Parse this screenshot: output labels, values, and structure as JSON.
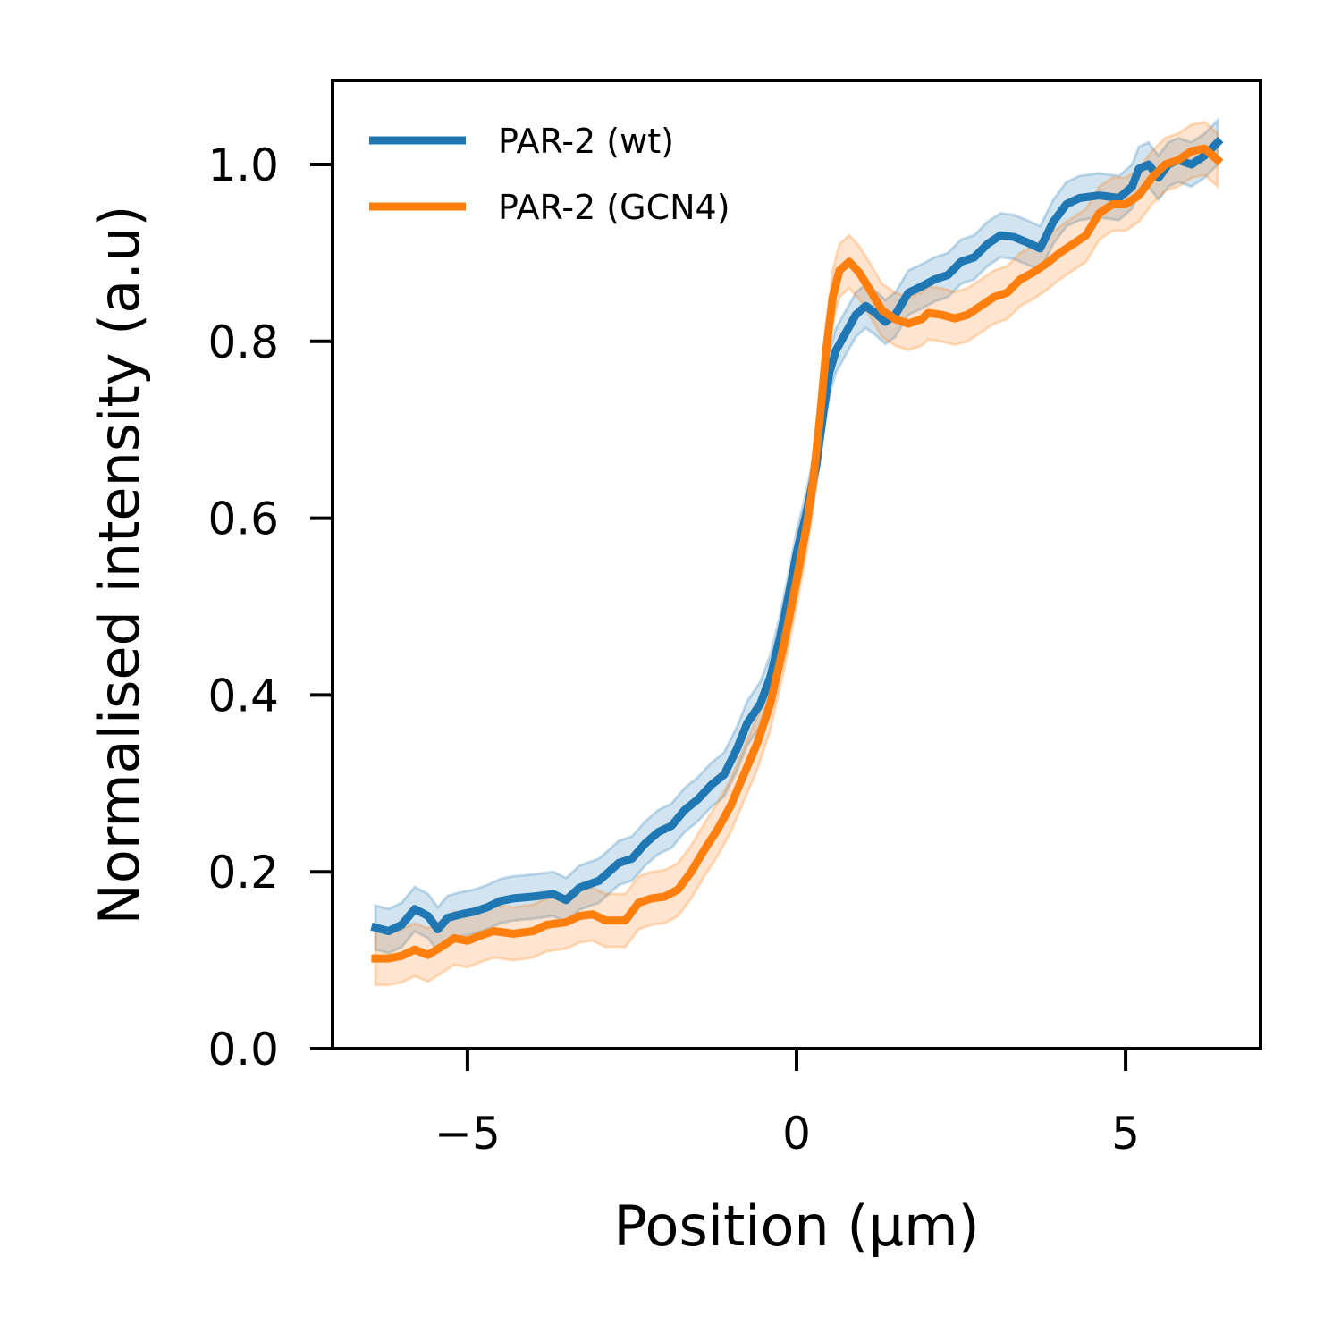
{
  "chart_data": {
    "type": "line",
    "xlabel": "Position (μm)",
    "ylabel": "Normalised intensity (a.u)",
    "xlim": [
      -7.05,
      7.05
    ],
    "ylim": [
      0.0,
      1.095
    ],
    "xticks": [
      -5,
      0,
      5
    ],
    "xtick_labels": [
      "−5",
      "0",
      "5"
    ],
    "yticks": [
      0.0,
      0.2,
      0.4,
      0.6,
      0.8,
      1.0
    ],
    "ytick_labels": [
      "0.0",
      "0.2",
      "0.4",
      "0.6",
      "0.8",
      "1.0"
    ],
    "grid": false,
    "legend_position": "top-left",
    "series": [
      {
        "name": "PAR-2 (wt)",
        "color": "#1f77b4",
        "band": "mean ± error (shaded)",
        "band_halfwidth": 0.025,
        "points": [
          [
            -6.4,
            0.137
          ],
          [
            -6.2,
            0.133
          ],
          [
            -6.0,
            0.14
          ],
          [
            -5.8,
            0.158
          ],
          [
            -5.6,
            0.15
          ],
          [
            -5.45,
            0.135
          ],
          [
            -5.3,
            0.148
          ],
          [
            -5.1,
            0.152
          ],
          [
            -4.9,
            0.155
          ],
          [
            -4.7,
            0.16
          ],
          [
            -4.5,
            0.167
          ],
          [
            -4.3,
            0.17
          ],
          [
            -4.0,
            0.172
          ],
          [
            -3.7,
            0.175
          ],
          [
            -3.5,
            0.168
          ],
          [
            -3.3,
            0.182
          ],
          [
            -3.0,
            0.19
          ],
          [
            -2.7,
            0.21
          ],
          [
            -2.5,
            0.215
          ],
          [
            -2.3,
            0.232
          ],
          [
            -2.1,
            0.245
          ],
          [
            -1.9,
            0.252
          ],
          [
            -1.7,
            0.27
          ],
          [
            -1.5,
            0.282
          ],
          [
            -1.3,
            0.298
          ],
          [
            -1.1,
            0.31
          ],
          [
            -0.9,
            0.34
          ],
          [
            -0.75,
            0.368
          ],
          [
            -0.55,
            0.39
          ],
          [
            -0.4,
            0.42
          ],
          [
            -0.25,
            0.465
          ],
          [
            -0.1,
            0.52
          ],
          [
            0.0,
            0.56
          ],
          [
            0.15,
            0.605
          ],
          [
            0.3,
            0.66
          ],
          [
            0.4,
            0.715
          ],
          [
            0.5,
            0.765
          ],
          [
            0.6,
            0.79
          ],
          [
            0.75,
            0.81
          ],
          [
            0.9,
            0.83
          ],
          [
            1.05,
            0.84
          ],
          [
            1.2,
            0.832
          ],
          [
            1.35,
            0.822
          ],
          [
            1.5,
            0.83
          ],
          [
            1.7,
            0.855
          ],
          [
            1.9,
            0.862
          ],
          [
            2.1,
            0.87
          ],
          [
            2.3,
            0.875
          ],
          [
            2.5,
            0.89
          ],
          [
            2.7,
            0.895
          ],
          [
            2.9,
            0.91
          ],
          [
            3.1,
            0.92
          ],
          [
            3.3,
            0.918
          ],
          [
            3.5,
            0.912
          ],
          [
            3.7,
            0.905
          ],
          [
            3.9,
            0.935
          ],
          [
            4.1,
            0.955
          ],
          [
            4.3,
            0.962
          ],
          [
            4.6,
            0.965
          ],
          [
            4.9,
            0.962
          ],
          [
            5.1,
            0.975
          ],
          [
            5.2,
            0.995
          ],
          [
            5.35,
            1.0
          ],
          [
            5.5,
            0.985
          ],
          [
            5.65,
            1.0
          ],
          [
            5.8,
            1.005
          ],
          [
            6.0,
            1.0
          ],
          [
            6.2,
            1.01
          ],
          [
            6.4,
            1.025
          ]
        ]
      },
      {
        "name": "PAR-2 (GCN4)",
        "color": "#ff7f0e",
        "band": "mean ± error (shaded)",
        "band_halfwidth": 0.03,
        "points": [
          [
            -6.4,
            0.102
          ],
          [
            -6.2,
            0.102
          ],
          [
            -6.0,
            0.105
          ],
          [
            -5.8,
            0.112
          ],
          [
            -5.6,
            0.106
          ],
          [
            -5.4,
            0.115
          ],
          [
            -5.2,
            0.125
          ],
          [
            -5.0,
            0.122
          ],
          [
            -4.8,
            0.128
          ],
          [
            -4.6,
            0.133
          ],
          [
            -4.3,
            0.13
          ],
          [
            -4.0,
            0.133
          ],
          [
            -3.8,
            0.14
          ],
          [
            -3.5,
            0.143
          ],
          [
            -3.3,
            0.15
          ],
          [
            -3.1,
            0.152
          ],
          [
            -2.9,
            0.145
          ],
          [
            -2.6,
            0.145
          ],
          [
            -2.4,
            0.165
          ],
          [
            -2.2,
            0.17
          ],
          [
            -2.0,
            0.172
          ],
          [
            -1.8,
            0.18
          ],
          [
            -1.6,
            0.2
          ],
          [
            -1.4,
            0.225
          ],
          [
            -1.2,
            0.248
          ],
          [
            -1.0,
            0.275
          ],
          [
            -0.8,
            0.31
          ],
          [
            -0.6,
            0.345
          ],
          [
            -0.4,
            0.39
          ],
          [
            -0.2,
            0.455
          ],
          [
            0.0,
            0.53
          ],
          [
            0.15,
            0.59
          ],
          [
            0.25,
            0.64
          ],
          [
            0.35,
            0.71
          ],
          [
            0.45,
            0.79
          ],
          [
            0.55,
            0.85
          ],
          [
            0.65,
            0.88
          ],
          [
            0.8,
            0.89
          ],
          [
            0.95,
            0.878
          ],
          [
            1.1,
            0.86
          ],
          [
            1.3,
            0.835
          ],
          [
            1.5,
            0.825
          ],
          [
            1.7,
            0.82
          ],
          [
            1.9,
            0.825
          ],
          [
            2.0,
            0.832
          ],
          [
            2.2,
            0.83
          ],
          [
            2.4,
            0.826
          ],
          [
            2.6,
            0.83
          ],
          [
            2.8,
            0.84
          ],
          [
            3.0,
            0.85
          ],
          [
            3.2,
            0.855
          ],
          [
            3.4,
            0.87
          ],
          [
            3.6,
            0.878
          ],
          [
            3.8,
            0.888
          ],
          [
            4.0,
            0.9
          ],
          [
            4.2,
            0.91
          ],
          [
            4.4,
            0.92
          ],
          [
            4.6,
            0.945
          ],
          [
            4.8,
            0.955
          ],
          [
            5.0,
            0.955
          ],
          [
            5.2,
            0.965
          ],
          [
            5.4,
            0.985
          ],
          [
            5.6,
            1.0
          ],
          [
            5.8,
            1.005
          ],
          [
            6.0,
            1.015
          ],
          [
            6.2,
            1.018
          ],
          [
            6.4,
            1.005
          ]
        ]
      }
    ]
  }
}
